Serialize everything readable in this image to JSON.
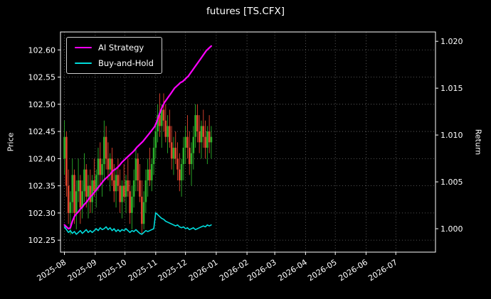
{
  "window": {
    "title": "futures [TS.CFX]"
  },
  "chart_data": {
    "type": "candlestick+line",
    "title": "futures [TS.CFX]",
    "ylabel_left": "Price",
    "ylabel_right": "Return",
    "background": "#000000",
    "text_color": "#ffffff",
    "grid": true,
    "grid_style": "dotted",
    "legend": {
      "position": "upper-left",
      "items": [
        {
          "label": "AI Strategy",
          "color": "#ff00ff"
        },
        {
          "label": "Buy-and-Hold",
          "color": "#00dcdc"
        }
      ]
    },
    "x_axis": {
      "domain_days": [
        -4,
        374
      ],
      "tick_days": [
        0,
        31,
        61,
        92,
        122,
        153,
        184,
        212,
        243,
        273,
        304,
        334
      ],
      "tick_labels": [
        "2025-08",
        "2025-09",
        "2025-10",
        "2025-11",
        "2025-12",
        "2026-01",
        "2026-02",
        "2026-03",
        "2026-04",
        "2026-05",
        "2026-06",
        "2026-07"
      ],
      "label_rotation_deg": -33
    },
    "price_axis": {
      "range": [
        102.228,
        102.633
      ],
      "ticks": [
        102.25,
        102.3,
        102.35,
        102.4,
        102.45,
        102.5,
        102.55,
        102.6
      ],
      "tick_labels": [
        "102.25",
        "102.30",
        "102.35",
        "102.40",
        "102.45",
        "102.50",
        "102.55",
        "102.60"
      ]
    },
    "return_axis": {
      "range": [
        0.9975,
        1.021
      ],
      "ticks": [
        1.0,
        1.005,
        1.01,
        1.015,
        1.02
      ],
      "tick_labels": [
        "1.000",
        "1.005",
        "1.010",
        "1.015",
        "1.020"
      ]
    },
    "candles": {
      "up_color": "#2bb02b",
      "down_color": "#e0442e",
      "columns": [
        "day",
        "open",
        "high",
        "low",
        "close"
      ],
      "data": [
        [
          0,
          102.4,
          102.47,
          102.37,
          102.44
        ],
        [
          2,
          102.44,
          102.45,
          102.33,
          102.35
        ],
        [
          4,
          102.35,
          102.38,
          102.28,
          102.3
        ],
        [
          6,
          102.3,
          102.34,
          102.26,
          102.32
        ],
        [
          8,
          102.32,
          102.4,
          102.3,
          102.37
        ],
        [
          10,
          102.37,
          102.38,
          102.28,
          102.3
        ],
        [
          12,
          102.3,
          102.36,
          102.27,
          102.34
        ],
        [
          14,
          102.34,
          102.4,
          102.32,
          102.36
        ],
        [
          16,
          102.36,
          102.37,
          102.28,
          102.31
        ],
        [
          18,
          102.31,
          102.36,
          102.29,
          102.34
        ],
        [
          20,
          102.34,
          102.41,
          102.32,
          102.38
        ],
        [
          22,
          102.38,
          102.39,
          102.31,
          102.33
        ],
        [
          24,
          102.33,
          102.37,
          102.29,
          102.35
        ],
        [
          26,
          102.35,
          102.38,
          102.3,
          102.32
        ],
        [
          28,
          102.32,
          102.37,
          102.3,
          102.36
        ],
        [
          30,
          102.36,
          102.4,
          102.33,
          102.34
        ],
        [
          32,
          102.34,
          102.38,
          102.31,
          102.37
        ],
        [
          34,
          102.37,
          102.42,
          102.34,
          102.4
        ],
        [
          36,
          102.4,
          102.43,
          102.35,
          102.37
        ],
        [
          38,
          102.37,
          102.4,
          102.33,
          102.39
        ],
        [
          40,
          102.39,
          102.47,
          102.36,
          102.44
        ],
        [
          42,
          102.44,
          102.46,
          102.38,
          102.4
        ],
        [
          44,
          102.4,
          102.43,
          102.36,
          102.38
        ],
        [
          46,
          102.38,
          102.41,
          102.34,
          102.4
        ],
        [
          48,
          102.4,
          102.42,
          102.35,
          102.36
        ],
        [
          50,
          102.36,
          102.39,
          102.32,
          102.34
        ],
        [
          52,
          102.34,
          102.38,
          102.31,
          102.37
        ],
        [
          54,
          102.37,
          102.4,
          102.34,
          102.35
        ],
        [
          56,
          102.35,
          102.38,
          102.3,
          102.32
        ],
        [
          58,
          102.32,
          102.36,
          102.29,
          102.35
        ],
        [
          60,
          102.35,
          102.39,
          102.32,
          102.33
        ],
        [
          62,
          102.33,
          102.37,
          102.3,
          102.36
        ],
        [
          64,
          102.36,
          102.4,
          102.33,
          102.34
        ],
        [
          66,
          102.34,
          102.36,
          102.28,
          102.3
        ],
        [
          68,
          102.3,
          102.35,
          102.27,
          102.33
        ],
        [
          70,
          102.33,
          102.38,
          102.31,
          102.36
        ],
        [
          72,
          102.36,
          102.42,
          102.34,
          102.4
        ],
        [
          74,
          102.4,
          102.41,
          102.34,
          102.36
        ],
        [
          76,
          102.36,
          102.39,
          102.32,
          102.33
        ],
        [
          78,
          102.33,
          102.36,
          102.26,
          102.28
        ],
        [
          80,
          102.28,
          102.34,
          102.27,
          102.32
        ],
        [
          82,
          102.32,
          102.38,
          102.3,
          102.36
        ],
        [
          84,
          102.36,
          102.4,
          102.33,
          102.38
        ],
        [
          86,
          102.38,
          102.42,
          102.35,
          102.36
        ],
        [
          88,
          102.36,
          102.4,
          102.34,
          102.39
        ],
        [
          90,
          102.39,
          102.44,
          102.37,
          102.42
        ],
        [
          92,
          102.42,
          102.46,
          102.4,
          102.45
        ],
        [
          94,
          102.45,
          102.5,
          102.43,
          102.48
        ],
        [
          96,
          102.48,
          102.52,
          102.44,
          102.46
        ],
        [
          98,
          102.46,
          102.5,
          102.42,
          102.49
        ],
        [
          100,
          102.49,
          102.52,
          102.45,
          102.47
        ],
        [
          102,
          102.47,
          102.5,
          102.43,
          102.44
        ],
        [
          104,
          102.44,
          102.48,
          102.41,
          102.46
        ],
        [
          106,
          102.46,
          102.49,
          102.42,
          102.43
        ],
        [
          108,
          102.43,
          102.46,
          102.38,
          102.4
        ],
        [
          110,
          102.4,
          102.44,
          102.37,
          102.42
        ],
        [
          112,
          102.42,
          102.45,
          102.39,
          102.4
        ],
        [
          114,
          102.4,
          102.43,
          102.36,
          102.38
        ],
        [
          116,
          102.38,
          102.41,
          102.34,
          102.36
        ],
        [
          118,
          102.36,
          102.4,
          102.33,
          102.39
        ],
        [
          120,
          102.39,
          102.44,
          102.36,
          102.42
        ],
        [
          122,
          102.42,
          102.46,
          102.39,
          102.44
        ],
        [
          124,
          102.44,
          102.48,
          102.4,
          102.42
        ],
        [
          126,
          102.42,
          102.45,
          102.37,
          102.39
        ],
        [
          128,
          102.39,
          102.43,
          102.35,
          102.41
        ],
        [
          130,
          102.41,
          102.46,
          102.38,
          102.44
        ],
        [
          132,
          102.44,
          102.5,
          102.42,
          102.48
        ],
        [
          134,
          102.48,
          102.5,
          102.43,
          102.45
        ],
        [
          136,
          102.45,
          102.48,
          102.41,
          102.43
        ],
        [
          138,
          102.43,
          102.47,
          102.4,
          102.46
        ],
        [
          140,
          102.46,
          102.49,
          102.42,
          102.44
        ],
        [
          142,
          102.44,
          102.47,
          102.4,
          102.42
        ],
        [
          144,
          102.42,
          102.46,
          102.39,
          102.45
        ],
        [
          146,
          102.45,
          102.48,
          102.41,
          102.43
        ],
        [
          148,
          102.43,
          102.46,
          102.4,
          102.44
        ]
      ]
    },
    "series": [
      {
        "name": "AI Strategy",
        "color": "#ff00ff",
        "axis": "return",
        "linewidth": 2.2,
        "points": [
          [
            0,
            1.0004
          ],
          [
            2,
            1.0002
          ],
          [
            4,
            1.0
          ],
          [
            6,
            1.0001
          ],
          [
            8,
            1.0008
          ],
          [
            10,
            1.0013
          ],
          [
            12,
            1.0016
          ],
          [
            14,
            1.0018
          ],
          [
            16,
            1.0021
          ],
          [
            18,
            1.0023
          ],
          [
            20,
            1.0026
          ],
          [
            22,
            1.0028
          ],
          [
            24,
            1.0031
          ],
          [
            26,
            1.0034
          ],
          [
            28,
            1.0036
          ],
          [
            31,
            1.004
          ],
          [
            34,
            1.0044
          ],
          [
            37,
            1.0048
          ],
          [
            40,
            1.0052
          ],
          [
            43,
            1.0055
          ],
          [
            46,
            1.0058
          ],
          [
            49,
            1.0062
          ],
          [
            52,
            1.0064
          ],
          [
            55,
            1.0067
          ],
          [
            58,
            1.0071
          ],
          [
            61,
            1.0074
          ],
          [
            64,
            1.0077
          ],
          [
            67,
            1.008
          ],
          [
            70,
            1.0083
          ],
          [
            73,
            1.0087
          ],
          [
            76,
            1.009
          ],
          [
            79,
            1.0093
          ],
          [
            82,
            1.0097
          ],
          [
            85,
            1.0101
          ],
          [
            88,
            1.0105
          ],
          [
            91,
            1.0109
          ],
          [
            93,
            1.0114
          ],
          [
            95,
            1.012
          ],
          [
            97,
            1.0126
          ],
          [
            99,
            1.0131
          ],
          [
            101,
            1.0135
          ],
          [
            103,
            1.0138
          ],
          [
            105,
            1.0141
          ],
          [
            107,
            1.0144
          ],
          [
            109,
            1.0147
          ],
          [
            111,
            1.015
          ],
          [
            113,
            1.0152
          ],
          [
            115,
            1.0154
          ],
          [
            117,
            1.0156
          ],
          [
            119,
            1.0157
          ],
          [
            121,
            1.0159
          ],
          [
            123,
            1.0161
          ],
          [
            125,
            1.0163
          ],
          [
            127,
            1.0166
          ],
          [
            129,
            1.0169
          ],
          [
            131,
            1.0172
          ],
          [
            133,
            1.0175
          ],
          [
            135,
            1.0178
          ],
          [
            137,
            1.0181
          ],
          [
            139,
            1.0184
          ],
          [
            141,
            1.0187
          ],
          [
            143,
            1.019
          ],
          [
            145,
            1.0192
          ],
          [
            147,
            1.0194
          ],
          [
            148,
            1.0195
          ]
        ]
      },
      {
        "name": "Buy-and-Hold",
        "color": "#00dcdc",
        "axis": "return",
        "linewidth": 1.6,
        "points": [
          [
            0,
            1.0002
          ],
          [
            2,
            0.9999
          ],
          [
            4,
            0.9996
          ],
          [
            6,
            0.9998
          ],
          [
            8,
            0.9995
          ],
          [
            10,
            0.9997
          ],
          [
            12,
            0.9994
          ],
          [
            14,
            0.9996
          ],
          [
            16,
            0.9998
          ],
          [
            18,
            0.9995
          ],
          [
            20,
            0.9997
          ],
          [
            22,
            0.9999
          ],
          [
            24,
            0.9996
          ],
          [
            26,
            0.9998
          ],
          [
            28,
            0.9996
          ],
          [
            30,
            0.9998
          ],
          [
            32,
            1.0
          ],
          [
            34,
            0.9998
          ],
          [
            36,
            1.0001
          ],
          [
            38,
            0.9999
          ],
          [
            40,
            1.0
          ],
          [
            42,
            1.0002
          ],
          [
            44,
            0.9999
          ],
          [
            46,
            1.0001
          ],
          [
            48,
            0.9998
          ],
          [
            50,
            1.0
          ],
          [
            52,
            0.9997
          ],
          [
            54,
            0.9999
          ],
          [
            56,
            0.9997
          ],
          [
            58,
            0.9999
          ],
          [
            60,
            0.9998
          ],
          [
            62,
            1.0
          ],
          [
            64,
            0.9998
          ],
          [
            66,
            0.9996
          ],
          [
            68,
            0.9998
          ],
          [
            70,
            0.9997
          ],
          [
            72,
            0.9999
          ],
          [
            74,
            0.9997
          ],
          [
            76,
            0.9995
          ],
          [
            78,
            0.9994
          ],
          [
            80,
            0.9996
          ],
          [
            82,
            0.9998
          ],
          [
            84,
            0.9997
          ],
          [
            86,
            0.9998
          ],
          [
            88,
            0.9999
          ],
          [
            90,
            1.0
          ],
          [
            92,
            1.0017
          ],
          [
            94,
            1.0015
          ],
          [
            96,
            1.0013
          ],
          [
            98,
            1.0011
          ],
          [
            100,
            1.001
          ],
          [
            102,
            1.0008
          ],
          [
            104,
            1.0007
          ],
          [
            106,
            1.0006
          ],
          [
            108,
            1.0005
          ],
          [
            110,
            1.0004
          ],
          [
            112,
            1.0003
          ],
          [
            114,
            1.0004
          ],
          [
            116,
            1.0002
          ],
          [
            118,
            1.0001
          ],
          [
            120,
            1.0002
          ],
          [
            122,
            1.0
          ],
          [
            124,
            1.0001
          ],
          [
            126,
            0.9999
          ],
          [
            128,
            1.0
          ],
          [
            130,
            1.0001
          ],
          [
            132,
            0.9999
          ],
          [
            134,
            1.0
          ],
          [
            136,
            1.0001
          ],
          [
            138,
            1.0002
          ],
          [
            140,
            1.0003
          ],
          [
            142,
            1.0002
          ],
          [
            144,
            1.0004
          ],
          [
            146,
            1.0003
          ],
          [
            148,
            1.0004
          ]
        ]
      }
    ]
  }
}
